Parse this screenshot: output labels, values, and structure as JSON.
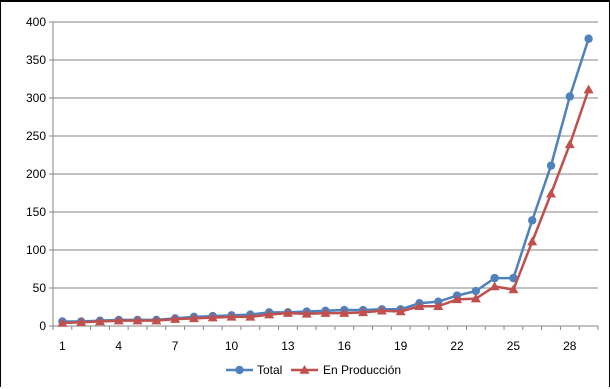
{
  "chart_data": {
    "type": "line",
    "x": [
      1,
      2,
      3,
      4,
      5,
      6,
      7,
      8,
      9,
      10,
      11,
      12,
      13,
      14,
      15,
      16,
      17,
      18,
      19,
      20,
      21,
      22,
      23,
      24,
      25,
      26,
      27,
      28,
      29
    ],
    "x_tick_labels": [
      "1",
      "4",
      "7",
      "10",
      "13",
      "16",
      "19",
      "22",
      "25",
      "28"
    ],
    "y_tick_labels": [
      "0",
      "50",
      "100",
      "150",
      "200",
      "250",
      "300",
      "350",
      "400"
    ],
    "ylim": [
      0,
      400
    ],
    "grid": true,
    "legend_position": "bottom",
    "series": [
      {
        "name": "Total",
        "color": "#4f81bd",
        "marker": "circle",
        "values": [
          6,
          6,
          7,
          8,
          8,
          8,
          10,
          12,
          13,
          14,
          15,
          18,
          18,
          19,
          20,
          21,
          21,
          22,
          22,
          30,
          32,
          40,
          46,
          63,
          63,
          139,
          211,
          302,
          378
        ]
      },
      {
        "name": "En Producción",
        "color": "#c0504d",
        "marker": "triangle",
        "values": [
          4,
          5,
          6,
          7,
          7,
          7,
          9,
          10,
          11,
          12,
          12,
          15,
          17,
          16,
          17,
          17,
          18,
          20,
          19,
          26,
          26,
          35,
          36,
          52,
          48,
          111,
          174,
          239,
          311
        ]
      }
    ]
  }
}
